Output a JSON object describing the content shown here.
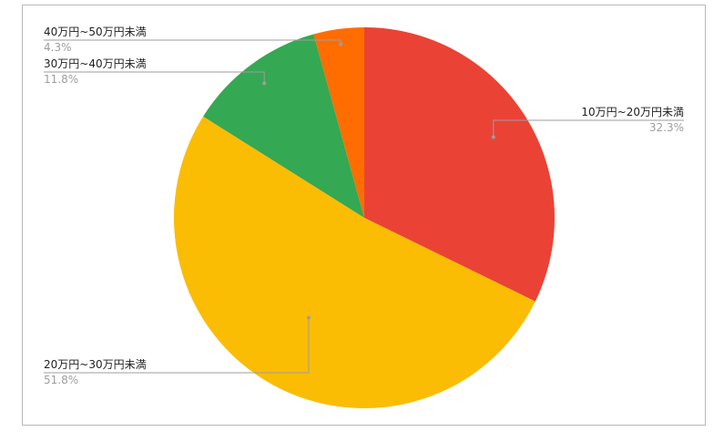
{
  "chart_data": {
    "type": "pie",
    "categories": [
      "10万円~20万円未満",
      "20万円~30万円未満",
      "30万円~40万円未満",
      "40万円~50万円未満"
    ],
    "values": [
      32.3,
      51.8,
      11.8,
      4.3
    ],
    "value_labels": [
      "32.3%",
      "51.8%",
      "11.8%",
      "4.3%"
    ],
    "colors": [
      "#ea4335",
      "#fbbc04",
      "#34a853",
      "#ff6d01"
    ],
    "start": "12 o'clock, clockwise",
    "legend": "none",
    "labels_position": "outside with leader lines"
  }
}
